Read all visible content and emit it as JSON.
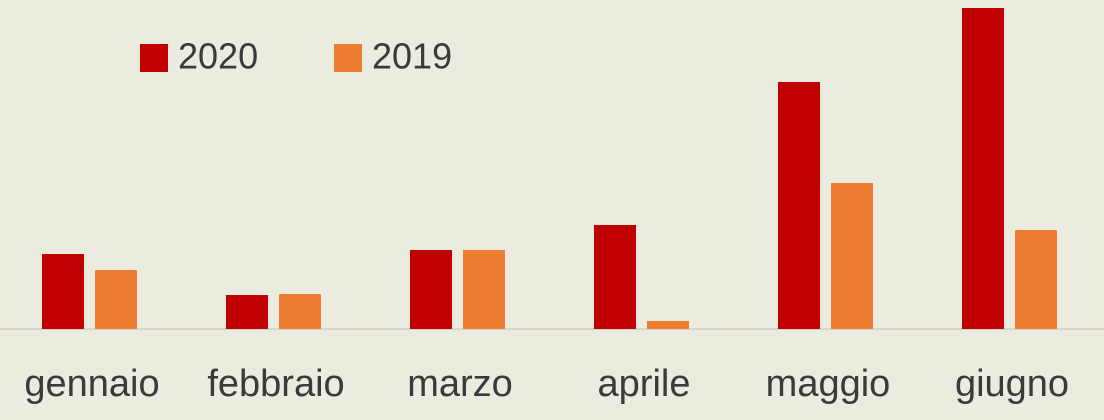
{
  "chart_data": {
    "type": "bar",
    "categories": [
      "gennaio",
      "febbraio",
      "marzo",
      "aprile",
      "maggio",
      "giugno"
    ],
    "series": [
      {
        "name": "2020",
        "color": "#c00000",
        "values": [
          75,
          34,
          79,
          104,
          247,
          321
        ]
      },
      {
        "name": "2019",
        "color": "#ed7d31",
        "values": [
          59,
          35,
          79,
          8,
          146,
          99
        ]
      }
    ],
    "ylim": [
      0,
      321
    ],
    "legend": "top-left"
  }
}
